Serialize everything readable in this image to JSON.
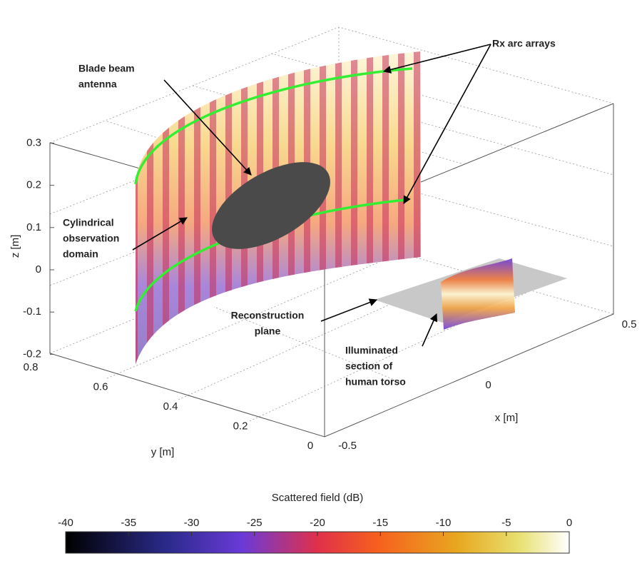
{
  "annotations": {
    "rx": [
      "Rx arc arrays"
    ],
    "blade": [
      "Blade beam",
      "antenna"
    ],
    "cyl": [
      "Cylindrical",
      "observation",
      "domain"
    ],
    "recon": [
      "Reconstruction",
      "plane"
    ],
    "torso": [
      "Illuminated",
      "section of",
      "human torso"
    ]
  },
  "axes": {
    "z_label": "z [m]",
    "z_ticks": [
      -0.2,
      -0.1,
      0,
      0.1,
      0.2,
      0.3
    ],
    "y_label": "y [m]",
    "y_ticks": [
      0,
      0.2,
      0.4,
      0.6,
      0.8
    ],
    "x_label": "x [m]",
    "x_ticks": [
      -0.5,
      0,
      0.5
    ]
  },
  "colorbar": {
    "title": "Scattered field (dB)",
    "ticks": [
      -40,
      -35,
      -30,
      -25,
      -20,
      -15,
      -10,
      -5,
      0
    ]
  }
}
